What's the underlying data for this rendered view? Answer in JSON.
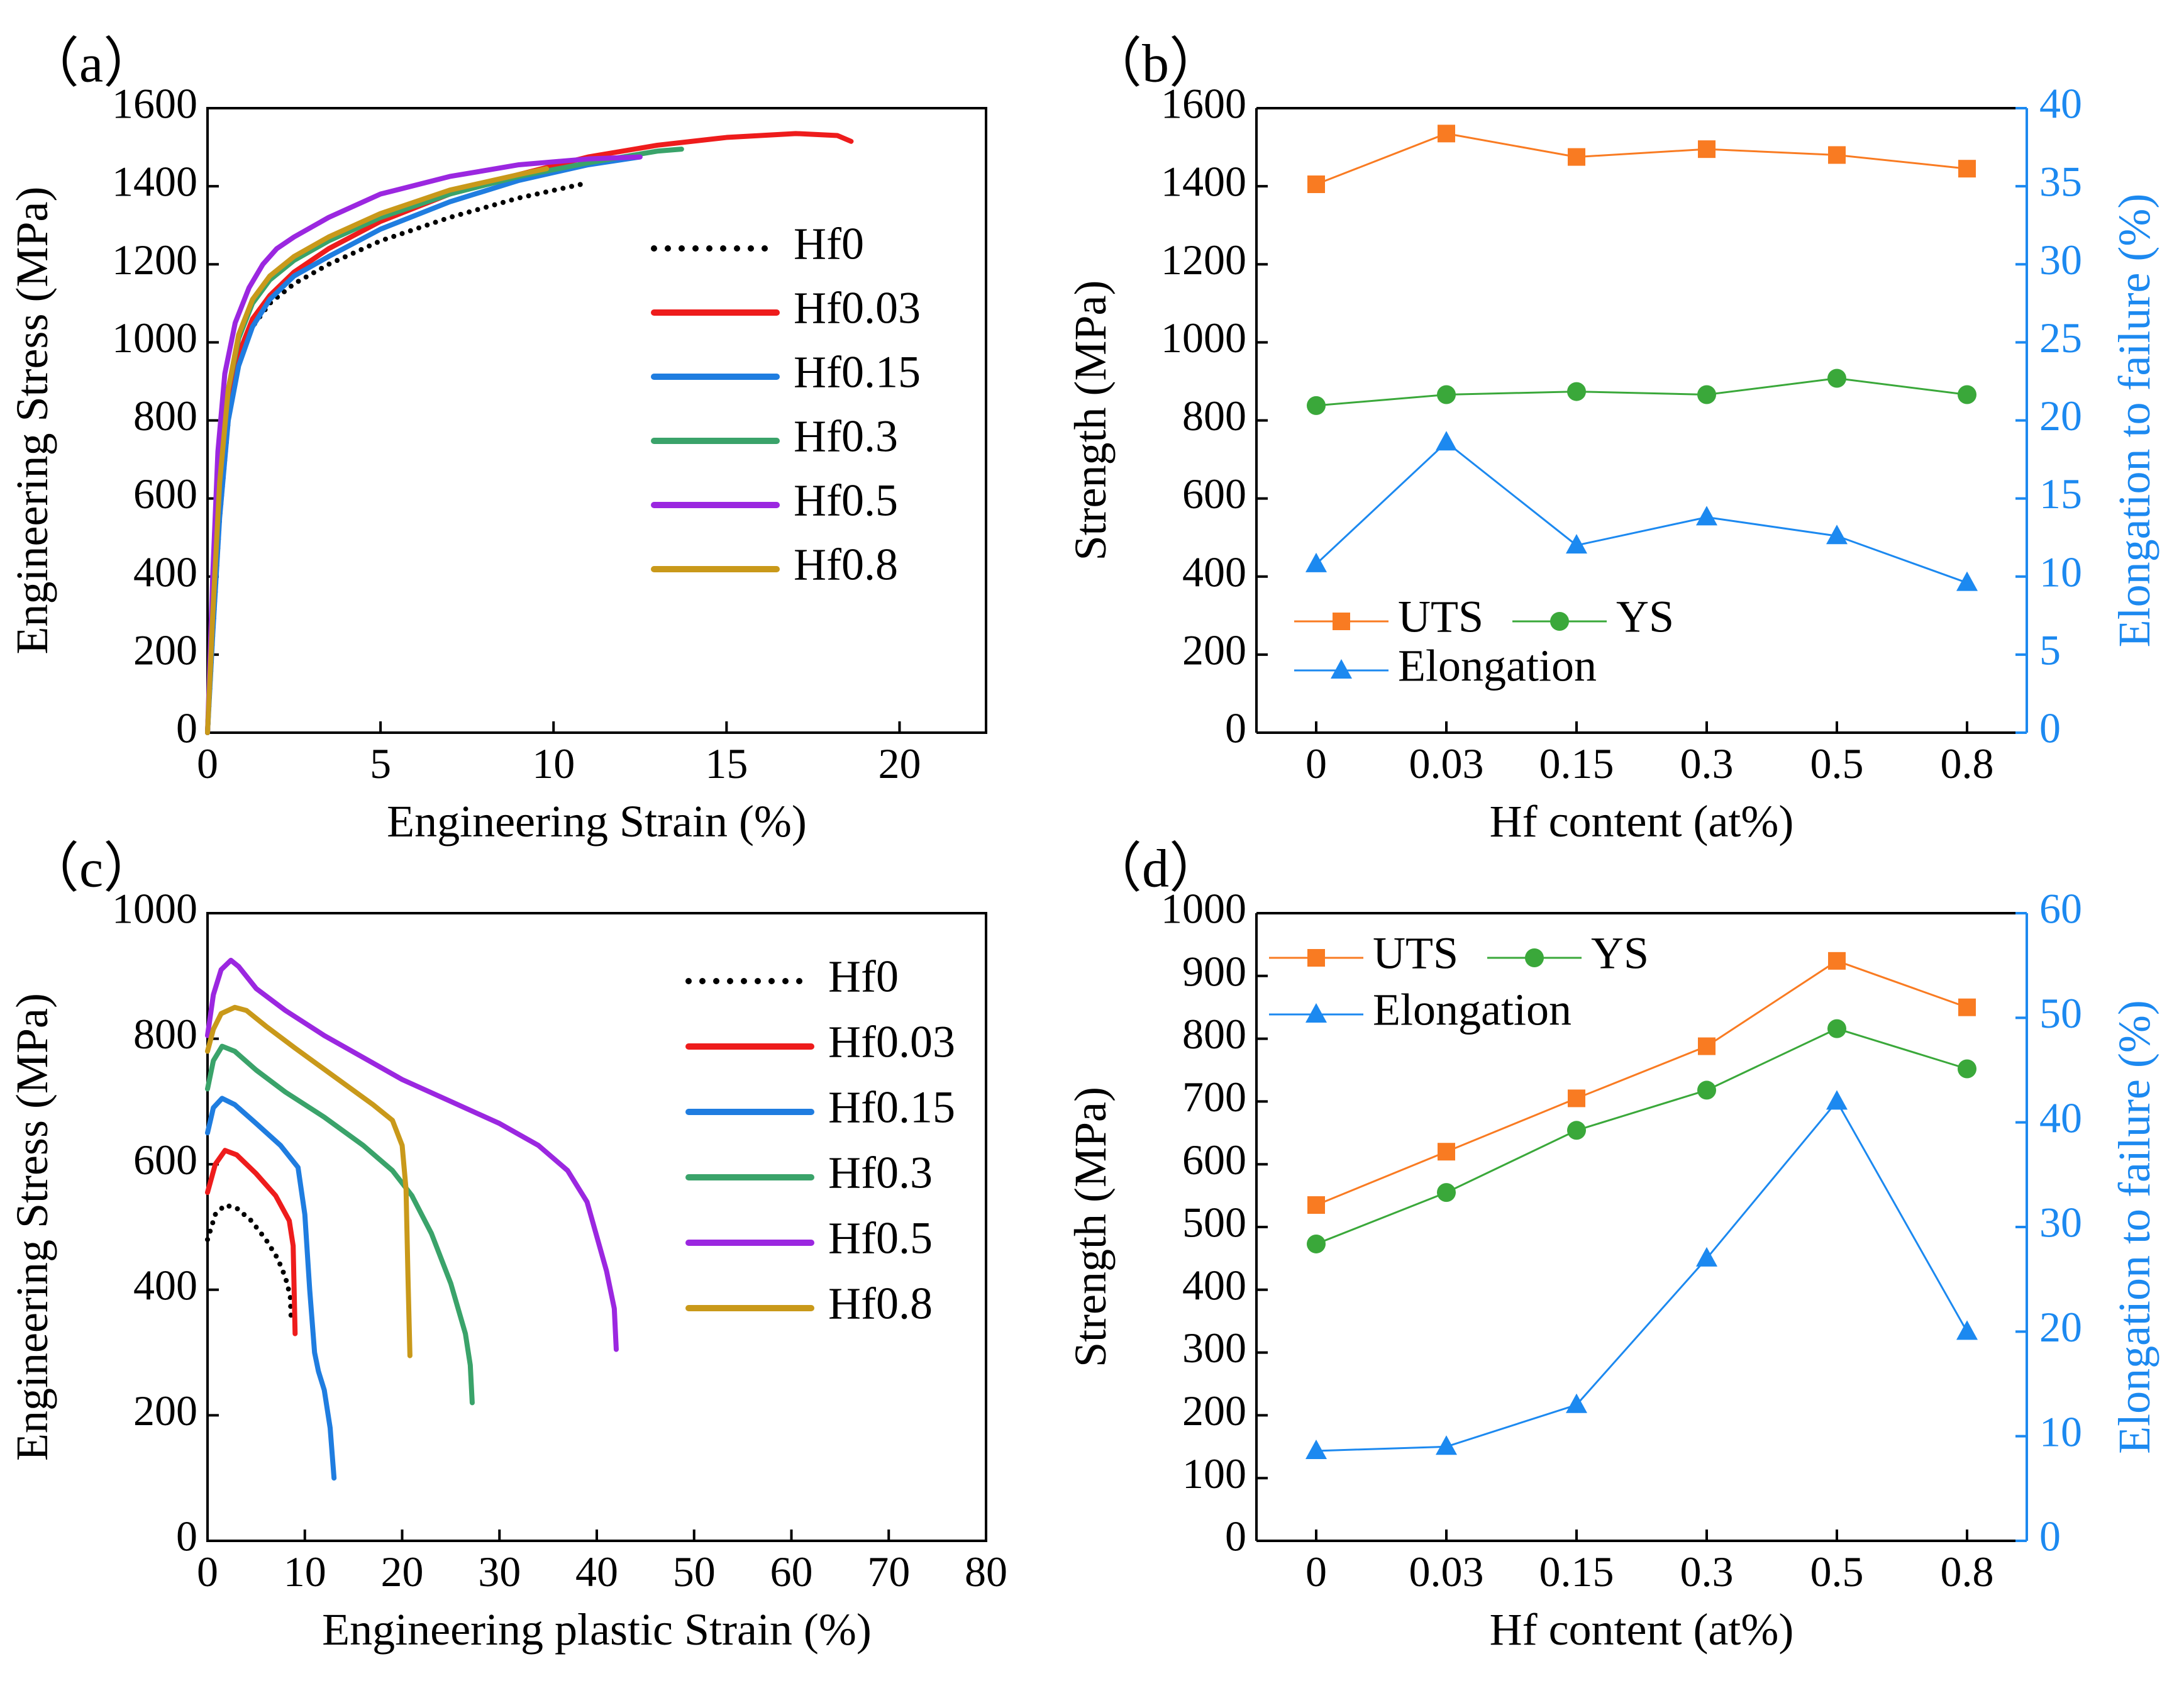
{
  "colors": {
    "Hf0": "#000000",
    "Hf0.03": "#ee1c1c",
    "Hf0.15": "#1f7de0",
    "Hf0.3": "#3aa36a",
    "Hf0.5": "#9b27e0",
    "Hf0.8": "#c9991a",
    "UTS": "#f97b22",
    "YS": "#3aa83a",
    "Elongation": "#1c89f0",
    "right_axis": "#1c89f0"
  },
  "chart_data": [
    {
      "panel": "a",
      "label": "（a）",
      "type": "line",
      "xlabel": "Engineering Strain (%)",
      "ylabel": "Engineering Stress (MPa)",
      "xlim": [
        0,
        22.5
      ],
      "ylim": [
        0,
        1600
      ],
      "xticks": [
        0,
        5,
        10,
        15,
        20
      ],
      "yticks": [
        0,
        200,
        400,
        600,
        800,
        1000,
        1200,
        1400,
        1600
      ],
      "legend_position": "right",
      "series": [
        {
          "name": "Hf0",
          "style": "dotted",
          "x": [
            0,
            0.15,
            0.35,
            0.6,
            0.9,
            1.3,
            1.8,
            2.5,
            3.5,
            5,
            7,
            9,
            10.8
          ],
          "y": [
            0,
            250,
            550,
            800,
            950,
            1040,
            1100,
            1150,
            1200,
            1260,
            1320,
            1370,
            1405
          ]
        },
        {
          "name": "Hf0.03",
          "style": "solid",
          "x": [
            0,
            0.15,
            0.35,
            0.6,
            0.9,
            1.3,
            1.8,
            2.5,
            3.5,
            5,
            7,
            9,
            11,
            13,
            15,
            17,
            18.2,
            18.6
          ],
          "y": [
            0,
            300,
            600,
            830,
            970,
            1060,
            1120,
            1180,
            1240,
            1310,
            1380,
            1430,
            1475,
            1505,
            1525,
            1535,
            1530,
            1515
          ]
        },
        {
          "name": "Hf0.15",
          "style": "solid",
          "x": [
            0,
            0.15,
            0.35,
            0.6,
            0.9,
            1.3,
            1.8,
            2.5,
            3.5,
            5,
            7,
            9,
            11,
            12.5
          ],
          "y": [
            0,
            250,
            550,
            800,
            940,
            1040,
            1110,
            1170,
            1220,
            1290,
            1360,
            1415,
            1455,
            1475
          ]
        },
        {
          "name": "Hf0.3",
          "style": "solid",
          "x": [
            0,
            0.15,
            0.35,
            0.6,
            0.9,
            1.3,
            1.8,
            2.5,
            3.5,
            5,
            7,
            9,
            11,
            13,
            13.7
          ],
          "y": [
            0,
            300,
            650,
            880,
            1010,
            1100,
            1160,
            1210,
            1260,
            1320,
            1380,
            1425,
            1460,
            1490,
            1495
          ]
        },
        {
          "name": "Hf0.5",
          "style": "solid",
          "x": [
            0,
            0.15,
            0.3,
            0.5,
            0.8,
            1.2,
            1.6,
            2,
            2.5,
            3.5,
            5,
            7,
            9,
            11,
            12.5
          ],
          "y": [
            0,
            400,
            720,
            920,
            1050,
            1140,
            1200,
            1240,
            1270,
            1320,
            1380,
            1425,
            1455,
            1470,
            1475
          ]
        },
        {
          "name": "Hf0.8",
          "style": "solid",
          "x": [
            0,
            0.15,
            0.35,
            0.6,
            0.9,
            1.3,
            1.8,
            2.5,
            3.5,
            5,
            7,
            9,
            9.8
          ],
          "y": [
            0,
            300,
            640,
            880,
            1020,
            1110,
            1170,
            1220,
            1270,
            1330,
            1390,
            1430,
            1445
          ]
        }
      ]
    },
    {
      "panel": "b",
      "label": "（b）",
      "type": "line",
      "categories": [
        "0",
        "0.03",
        "0.15",
        "0.3",
        "0.5",
        "0.8"
      ],
      "xlabel": "Hf content (at%)",
      "ylabel": "Strength (MPa)",
      "y2label": "Elongation to failure (%)",
      "ylim": [
        0,
        1600
      ],
      "y2lim": [
        0,
        40
      ],
      "yticks": [
        0,
        200,
        400,
        600,
        800,
        1000,
        1200,
        1400,
        1600
      ],
      "y2ticks": [
        0,
        5,
        10,
        15,
        20,
        25,
        30,
        35,
        40
      ],
      "legend_position": "bottom-left",
      "series": [
        {
          "name": "UTS",
          "marker": "square",
          "axis": "left",
          "values": [
            1405,
            1535,
            1475,
            1495,
            1480,
            1445
          ]
        },
        {
          "name": "YS",
          "marker": "circle",
          "axis": "left",
          "values": [
            838,
            866,
            874,
            866,
            908,
            866
          ]
        },
        {
          "name": "Elongation",
          "marker": "triangle",
          "axis": "right",
          "values": [
            10.8,
            18.6,
            12.0,
            13.8,
            12.6,
            9.6
          ]
        }
      ]
    },
    {
      "panel": "c",
      "label": "（c）",
      "type": "line",
      "xlabel": "Engineering plastic Strain (%)",
      "ylabel": "Engineering Stress (MPa)",
      "xlim": [
        0,
        80
      ],
      "ylim": [
        0,
        1000
      ],
      "xticks": [
        0,
        10,
        20,
        30,
        40,
        50,
        60,
        70,
        80
      ],
      "yticks": [
        0,
        200,
        400,
        600,
        800,
        1000
      ],
      "legend_position": "top-right",
      "series": [
        {
          "name": "Hf0",
          "style": "dotted",
          "x": [
            0,
            0.8,
            1.8,
            3,
            4.5,
            6,
            7.2,
            8,
            8.5,
            8.6
          ],
          "y": [
            480,
            520,
            535,
            530,
            510,
            480,
            450,
            420,
            390,
            350
          ]
        },
        {
          "name": "Hf0.03",
          "style": "solid",
          "x": [
            0,
            0.8,
            1.8,
            3,
            5,
            7,
            8.4,
            8.8,
            8.9,
            9
          ],
          "y": [
            555,
            600,
            622,
            615,
            585,
            550,
            510,
            470,
            400,
            330
          ]
        },
        {
          "name": "Hf0.15",
          "style": "solid",
          "x": [
            0,
            0.6,
            1.5,
            2.8,
            5,
            7.5,
            9.3,
            10,
            10.5,
            11,
            11.4,
            12,
            12.6,
            13
          ],
          "y": [
            650,
            690,
            705,
            695,
            665,
            630,
            595,
            520,
            400,
            300,
            270,
            240,
            180,
            100
          ]
        },
        {
          "name": "Hf0.3",
          "style": "solid",
          "x": [
            0,
            0.6,
            1.5,
            2.8,
            5,
            8,
            12,
            16,
            19,
            21,
            23,
            25,
            26.5,
            27,
            27.2
          ],
          "y": [
            720,
            765,
            788,
            780,
            750,
            715,
            675,
            630,
            590,
            550,
            490,
            410,
            330,
            280,
            220
          ]
        },
        {
          "name": "Hf0.5",
          "style": "solid",
          "x": [
            0,
            0.6,
            1.4,
            2.4,
            3.2,
            5,
            8,
            12,
            16,
            20,
            25,
            30,
            34,
            37,
            39,
            41,
            41.8,
            42
          ],
          "y": [
            805,
            870,
            910,
            925,
            915,
            880,
            845,
            805,
            770,
            735,
            700,
            665,
            630,
            590,
            540,
            430,
            370,
            305
          ]
        },
        {
          "name": "Hf0.8",
          "style": "solid",
          "x": [
            0,
            0.6,
            1.4,
            2.8,
            4,
            6,
            9,
            13,
            17,
            19,
            20,
            20.4,
            20.6,
            20.8
          ],
          "y": [
            780,
            815,
            840,
            850,
            845,
            820,
            785,
            740,
            695,
            670,
            630,
            560,
            420,
            295
          ]
        }
      ]
    },
    {
      "panel": "d",
      "label": "（d）",
      "type": "line",
      "categories": [
        "0",
        "0.03",
        "0.15",
        "0.3",
        "0.5",
        "0.8"
      ],
      "xlabel": "Hf content (at%)",
      "ylabel": "Strength (MPa)",
      "y2label": "Elongation to failure (%)",
      "ylim": [
        0,
        1000
      ],
      "y2lim": [
        0,
        60
      ],
      "yticks": [
        0,
        100,
        200,
        300,
        400,
        500,
        600,
        700,
        800,
        900,
        1000
      ],
      "y2ticks": [
        0,
        10,
        20,
        30,
        40,
        50,
        60
      ],
      "legend_position": "top-left",
      "series": [
        {
          "name": "UTS",
          "marker": "square",
          "axis": "left",
          "values": [
            535,
            620,
            705,
            788,
            924,
            850
          ]
        },
        {
          "name": "YS",
          "marker": "circle",
          "axis": "left",
          "values": [
            473,
            555,
            654,
            718,
            816,
            752
          ]
        },
        {
          "name": "Elongation",
          "marker": "triangle",
          "axis": "right",
          "values": [
            8.6,
            9.0,
            13.0,
            27.0,
            42.0,
            20.0
          ]
        }
      ]
    }
  ]
}
